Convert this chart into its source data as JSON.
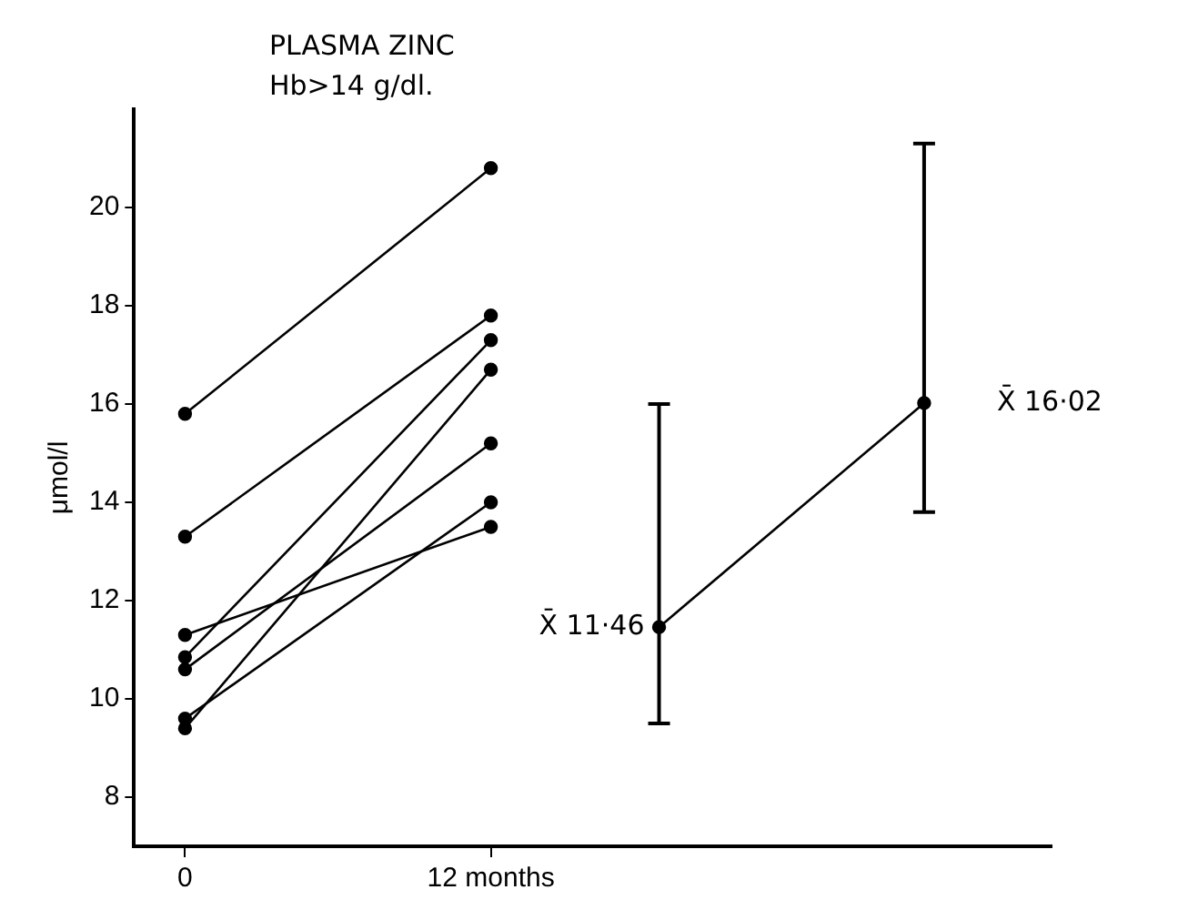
{
  "chart_data": {
    "type": "line",
    "title": "PLASMA  ZINC",
    "subtitle": "Hb>14 g/dl.",
    "ylabel": "μmol/l",
    "x": [
      0,
      12
    ],
    "series": [
      {
        "color": "#000000",
        "values": [
          15.8,
          20.8
        ]
      },
      {
        "color": "#000000",
        "values": [
          13.3,
          17.8
        ]
      },
      {
        "color": "#000000",
        "values": [
          11.3,
          13.5
        ]
      },
      {
        "color": "#000000",
        "values": [
          10.85,
          17.3
        ]
      },
      {
        "color": "#000000",
        "values": [
          10.6,
          15.2
        ]
      },
      {
        "color": "#000000",
        "values": [
          9.6,
          14.0
        ]
      },
      {
        "color": "#000000",
        "values": [
          9.4,
          16.7
        ]
      },
      {
        "color": "#000000",
        "x": [
          18.6,
          29.0
        ],
        "values": [
          11.46,
          16.02
        ],
        "errors": [
          [
            9.5,
            16.0
          ],
          [
            13.8,
            21.3
          ]
        ]
      }
    ],
    "xlim": [
      -2,
      34
    ],
    "xticks": [
      0,
      {
        "value": 12,
        "label": "12 months"
      }
    ],
    "ylim": [
      7,
      22
    ],
    "yticks": [
      8,
      10,
      12,
      14,
      16,
      18,
      20
    ],
    "annotations": [
      {
        "text": "X̄ 11·46",
        "x": 18.6,
        "y": 11.46
      },
      {
        "text": "X̄ 16·02",
        "x": 29.0,
        "y": 16.02
      }
    ],
    "marker": "circle",
    "line_style": "solid",
    "grid": false,
    "legend": false
  }
}
